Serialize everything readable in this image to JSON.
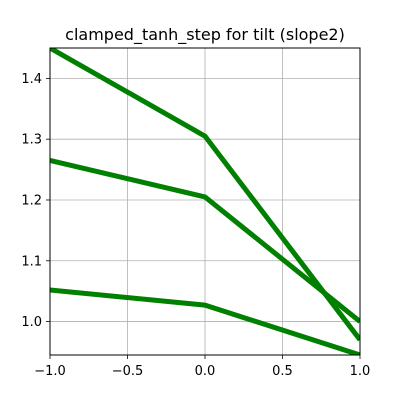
{
  "chart_data": {
    "type": "line",
    "title": "clamped_tanh_step for tilt (slope2)",
    "xlabel": "",
    "ylabel": "",
    "xlim": [
      -1.0,
      1.0
    ],
    "ylim": [
      0.945,
      1.45
    ],
    "grid": true,
    "x_ticks": [
      -1.0,
      -0.5,
      0.0,
      0.5,
      1.0
    ],
    "x_tick_labels": [
      "−1.0",
      "−0.5",
      "0.0",
      "0.5",
      "1.0"
    ],
    "y_ticks": [
      1.0,
      1.1,
      1.2,
      1.3,
      1.4
    ],
    "y_tick_labels": [
      "1.0",
      "1.1",
      "1.2",
      "1.3",
      "1.4"
    ],
    "color": "#008000",
    "series": [
      {
        "x": [
          -1.0,
          0.0,
          1.0
        ],
        "values": [
          1.45,
          1.305,
          0.97
        ]
      },
      {
        "x": [
          -1.0,
          0.0,
          1.0
        ],
        "values": [
          1.265,
          1.205,
          1.0
        ]
      },
      {
        "x": [
          -1.0,
          0.0,
          1.0
        ],
        "values": [
          1.052,
          1.027,
          0.945
        ]
      }
    ]
  }
}
